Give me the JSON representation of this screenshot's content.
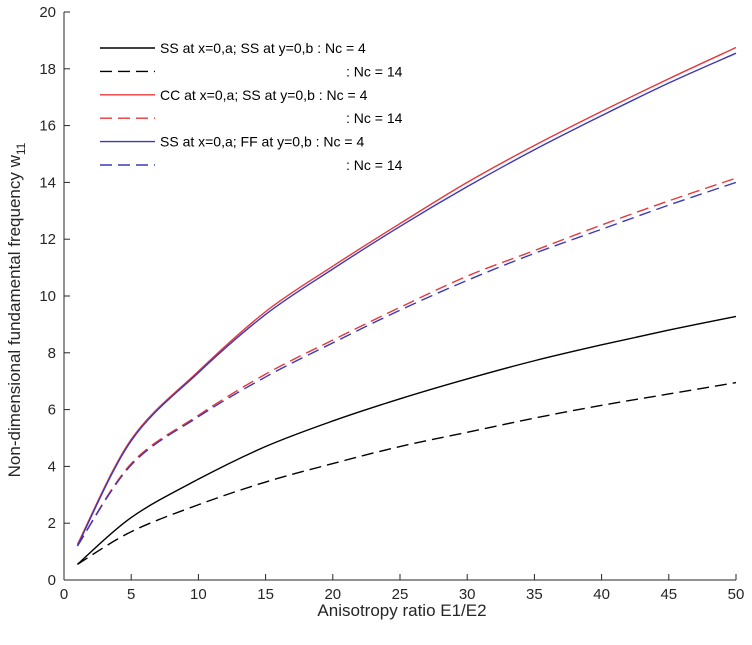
{
  "chart_data": {
    "type": "line",
    "title": "",
    "xlabel": "Anisotropy ratio E1/E2",
    "ylabel": "Non-dimensional fundamental frequency w",
    "ylabel_subscript": "11",
    "xlim": [
      0,
      50
    ],
    "ylim": [
      0,
      20
    ],
    "xticks": [
      0,
      5,
      10,
      15,
      20,
      25,
      30,
      35,
      40,
      45,
      50
    ],
    "yticks": [
      0,
      2,
      4,
      6,
      8,
      10,
      12,
      14,
      16,
      18,
      20
    ],
    "grid": false,
    "legend_position": "top-left",
    "x": [
      1,
      5,
      10,
      15,
      20,
      25,
      30,
      35,
      40,
      45,
      50
    ],
    "series": [
      {
        "name": "SS at x=0,a; SS at y=0,b : Nc = 4",
        "color": "#000000",
        "dash": "solid",
        "values": [
          0.55,
          2.2,
          3.55,
          4.7,
          5.6,
          6.38,
          7.08,
          7.72,
          8.28,
          8.8,
          9.28
        ]
      },
      {
        "name": ": Nc = 14",
        "color": "#000000",
        "dash": "dashed",
        "values": [
          0.55,
          1.7,
          2.65,
          3.45,
          4.1,
          4.7,
          5.2,
          5.7,
          6.15,
          6.55,
          6.95
        ]
      },
      {
        "name": "CC at x=0,a; SS at y=0,b : Nc = 4",
        "color": "#e8373a",
        "dash": "solid",
        "values": [
          1.25,
          4.95,
          7.35,
          9.45,
          11.05,
          12.55,
          14.0,
          15.3,
          16.5,
          17.65,
          18.75
        ]
      },
      {
        "name": ": Nc = 14",
        "color": "#e8373a",
        "dash": "dashed",
        "values": [
          1.2,
          4.1,
          5.8,
          7.25,
          8.45,
          9.6,
          10.7,
          11.6,
          12.5,
          13.35,
          14.15
        ]
      },
      {
        "name": "SS at x=0,a; FF at y=0,b : Nc = 4",
        "color": "#3a3ab8",
        "dash": "solid",
        "values": [
          1.2,
          4.9,
          7.3,
          9.35,
          10.95,
          12.45,
          13.85,
          15.15,
          16.35,
          17.5,
          18.55
        ]
      },
      {
        "name": ": Nc = 14",
        "color": "#3a3ab8",
        "dash": "dashed",
        "values": [
          1.2,
          4.05,
          5.75,
          7.15,
          8.35,
          9.5,
          10.55,
          11.5,
          12.35,
          13.2,
          14.0
        ]
      }
    ]
  }
}
